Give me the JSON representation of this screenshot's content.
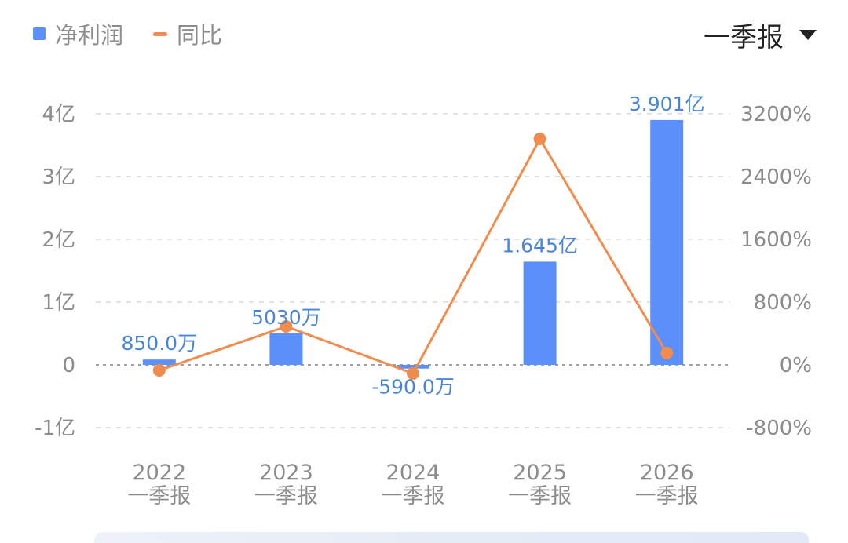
{
  "legend": {
    "bar_label": "净利润",
    "line_label": "同比"
  },
  "period_selector": {
    "label": "一季报",
    "icon": "caret-down-icon"
  },
  "colors": {
    "bar": "#5b8ff9",
    "line": "#f08c4e",
    "grid": "#e3e3e3",
    "zero_line": "#a0a0a0",
    "axis_text": "#8c8c8c",
    "label_text": "#4a86d8"
  },
  "chart_data": {
    "type": "bar",
    "categories": [
      "2022\n一季报",
      "2023\n一季报",
      "2024\n一季报",
      "2025\n一季报",
      "2026\n一季报"
    ],
    "x_years": [
      "2022",
      "2023",
      "2024",
      "2025",
      "2026"
    ],
    "x_period": "一季报",
    "series": [
      {
        "name": "净利润",
        "kind": "bar",
        "axis": "left",
        "values": [
          8500000,
          50300000,
          -5900000,
          164500000,
          390100000
        ],
        "data_labels": [
          "850.0万",
          "5030万",
          "-590.0万",
          "1.645亿",
          "3.901亿"
        ]
      },
      {
        "name": "同比",
        "kind": "line",
        "axis": "right",
        "values": [
          -70,
          490,
          -110,
          2880,
          150
        ]
      }
    ],
    "left_axis": {
      "range": [
        -100000000,
        400000000
      ],
      "ticks": [
        400000000,
        300000000,
        200000000,
        100000000,
        0,
        -100000000
      ],
      "tick_labels": [
        "4亿",
        "3亿",
        "2亿",
        "1亿",
        "0",
        "-1亿"
      ]
    },
    "right_axis": {
      "range": [
        -800,
        3200
      ],
      "ticks": [
        3200,
        2400,
        1600,
        800,
        0,
        -800
      ],
      "tick_labels": [
        "3200%",
        "2400%",
        "1600%",
        "800%",
        "0%",
        "-800%"
      ]
    },
    "grid": true,
    "legend_position": "top-left"
  }
}
